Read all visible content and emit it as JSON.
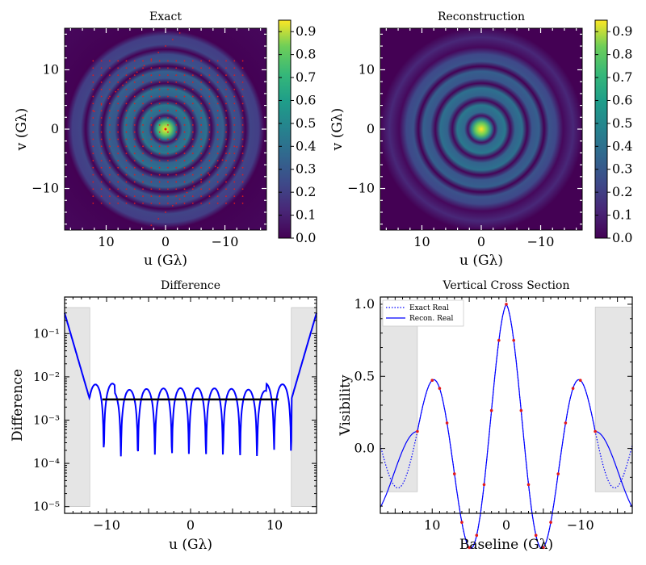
{
  "chart_data": [
    {
      "type": "heatmap",
      "title": "Exact",
      "xlabel": "u (Gλ)",
      "ylabel": "v (Gλ)",
      "xlim": [
        17,
        -17
      ],
      "ylim": [
        -17,
        17
      ],
      "xticks": [
        10,
        0,
        -10
      ],
      "xtick_labels": [
        "10",
        "0",
        "−10"
      ],
      "yticks": [
        10,
        0,
        -10
      ],
      "ytick_labels": [
        "10",
        "0",
        "−10"
      ],
      "description_values": "Ringed visibility amplitude pattern centered at origin with sampled (u,v) points in red"
    },
    {
      "type": "heatmap",
      "title": "Reconstruction",
      "xlabel": "u (Gλ)",
      "ylabel": "v (Gλ)",
      "xlim": [
        17,
        -17
      ],
      "ylim": [
        -17,
        17
      ],
      "xticks": [
        10,
        0,
        -10
      ],
      "xtick_labels": [
        "10",
        "0",
        "−10"
      ],
      "yticks": [
        10,
        0,
        -10
      ],
      "ytick_labels": [
        "10",
        "0",
        "−10"
      ]
    },
    {
      "type": "line",
      "title": "Difference",
      "xlabel": "u (Gλ)",
      "ylabel": "Difference",
      "xlim": [
        -15,
        15
      ],
      "yscale": "log",
      "ylim": [
        7e-06,
        0.7
      ],
      "xticks": [
        -10,
        0,
        10
      ],
      "xtick_labels": [
        "−10",
        "0",
        "10"
      ],
      "ytick_labels": [
        "10⁻⁵",
        "10⁻⁴",
        "10⁻³",
        "10⁻²",
        "10⁻¹"
      ],
      "threshold": 0.003,
      "threshold_range": [
        -10.5,
        10.5
      ],
      "shaded_regions": [
        [
          -15,
          -12
        ],
        [
          12,
          15
        ]
      ]
    },
    {
      "type": "line",
      "title": "Vertical Cross Section",
      "xlabel": "Baseline (Gλ)",
      "ylabel": "Visibility",
      "xlim": [
        17,
        -17
      ],
      "ylim": [
        -0.45,
        1.05
      ],
      "xticks": [
        10,
        0,
        -10
      ],
      "xtick_labels": [
        "10",
        "0",
        "−10"
      ],
      "yticks": [
        0.0,
        0.5,
        1.0
      ],
      "ytick_labels": [
        "0.0",
        "0.5",
        "1.0"
      ],
      "series": [
        {
          "name": "Exact Real",
          "style": "dotted"
        },
        {
          "name": "Recon.  Real",
          "style": "solid"
        }
      ],
      "sample_points_x": [
        12,
        10,
        9,
        8,
        7,
        6,
        5,
        4,
        3,
        2,
        1,
        0,
        -1,
        -2,
        -3,
        -4,
        -5,
        -6,
        -7,
        -8,
        -9,
        -10,
        -12
      ],
      "shaded_regions": [
        [
          17,
          12
        ],
        [
          -12,
          -17
        ]
      ]
    }
  ],
  "colorbars": [
    {
      "ticks": [
        "0.0",
        "0.1",
        "0.2",
        "0.3",
        "0.4",
        "0.5",
        "0.6",
        "0.7",
        "0.8",
        "0.9"
      ]
    },
    {
      "ticks": [
        "0.0",
        "0.1",
        "0.2",
        "0.3",
        "0.4",
        "0.5",
        "0.6",
        "0.7",
        "0.8",
        "0.9"
      ]
    }
  ]
}
